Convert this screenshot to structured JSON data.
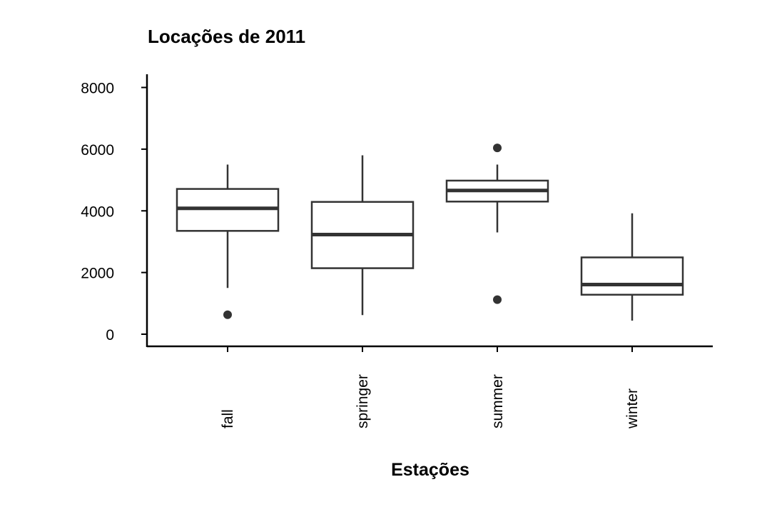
{
  "chart_data": {
    "type": "boxplot",
    "title": "Locações de 2011",
    "xlabel": "Estações",
    "ylabel": "",
    "ylim": [
      -400,
      8400
    ],
    "yticks": [
      0,
      2000,
      4000,
      6000,
      8000
    ],
    "categories": [
      "fall",
      "springer",
      "summer",
      "winter"
    ],
    "boxes": [
      {
        "category": "fall",
        "whisker_low": 1500,
        "q1": 3350,
        "median": 4080,
        "q3": 4710,
        "whisker_high": 5500,
        "outliers": [
          630
        ]
      },
      {
        "category": "springer",
        "whisker_low": 620,
        "q1": 2140,
        "median": 3230,
        "q3": 4290,
        "whisker_high": 5800,
        "outliers": []
      },
      {
        "category": "summer",
        "whisker_low": 3300,
        "q1": 4300,
        "median": 4660,
        "q3": 4980,
        "whisker_high": 5500,
        "outliers": [
          6040,
          1120
        ]
      },
      {
        "category": "winter",
        "whisker_low": 440,
        "q1": 1280,
        "median": 1610,
        "q3": 2490,
        "whisker_high": 3920,
        "outliers": []
      }
    ],
    "grid": false,
    "legend": "none",
    "colors": {
      "box_stroke": "#333333",
      "axis": "#000000",
      "background": "#ffffff"
    }
  }
}
